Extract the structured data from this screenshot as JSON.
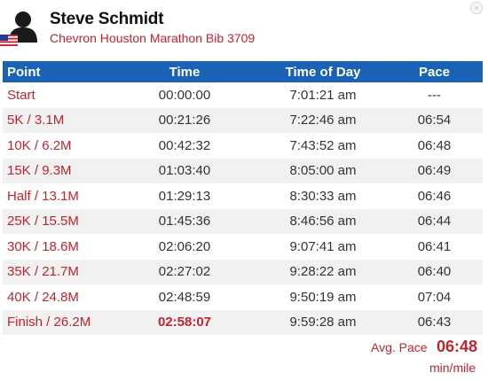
{
  "runner": {
    "name": "Steve Schmidt",
    "event": "Chevron Houston Marathon Bib 3709",
    "country_icon": "us-flag-icon",
    "avatar_icon": "person-silhouette-icon"
  },
  "table": {
    "headers": {
      "point": "Point",
      "time": "Time",
      "time_of_day": "Time of Day",
      "pace": "Pace"
    },
    "rows": [
      {
        "point": "Start",
        "time": "00:00:00",
        "time_of_day": "7:01:21 am",
        "pace": "---"
      },
      {
        "point": "5K / 3.1M",
        "time": "00:21:26",
        "time_of_day": "7:22:46 am",
        "pace": "06:54"
      },
      {
        "point": "10K / 6.2M",
        "time": "00:42:32",
        "time_of_day": "7:43:52 am",
        "pace": "06:48"
      },
      {
        "point": "15K / 9.3M",
        "time": "01:03:40",
        "time_of_day": "8:05:00 am",
        "pace": "06:49"
      },
      {
        "point": "Half / 13.1M",
        "time": "01:29:13",
        "time_of_day": "8:30:33 am",
        "pace": "06:46"
      },
      {
        "point": "25K / 15.5M",
        "time": "01:45:36",
        "time_of_day": "8:46:56 am",
        "pace": "06:44"
      },
      {
        "point": "30K / 18.6M",
        "time": "02:06:20",
        "time_of_day": "9:07:41 am",
        "pace": "06:41"
      },
      {
        "point": "35K / 21.7M",
        "time": "02:27:02",
        "time_of_day": "9:28:22 am",
        "pace": "06:40"
      },
      {
        "point": "40K / 24.8M",
        "time": "02:48:59",
        "time_of_day": "9:50:19 am",
        "pace": "07:04"
      },
      {
        "point": "Finish / 26.2M",
        "time": "02:58:07",
        "time_of_day": "9:59:28 am",
        "pace": "06:43"
      }
    ]
  },
  "summary": {
    "avg_pace_label": "Avg. Pace",
    "avg_pace_value": "06:48",
    "avg_pace_unit": "min/mile"
  },
  "colors": {
    "accent_red": "#c0252f",
    "header_blue": "#1a62b5",
    "stripe_gray": "#f1f1f1"
  }
}
